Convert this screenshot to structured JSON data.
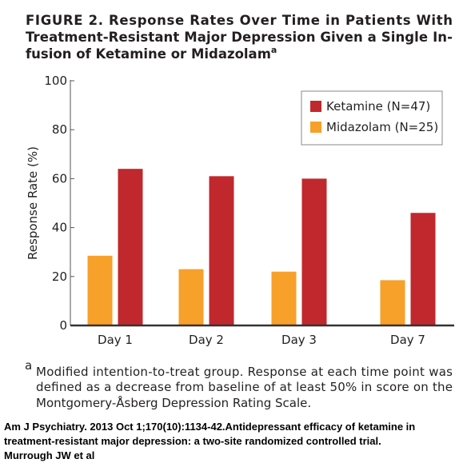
{
  "chart_data": {
    "type": "bar",
    "title_lines": [
      "FIGURE 2. Response Rates Over Time in Patients With",
      "Treatment-Resistant Major Depression Given a Single In-",
      "fusion of Ketamine or Midazolam"
    ],
    "title_marker": "a",
    "y_label": "Response Rate (%)",
    "categories": [
      "Day 1",
      "Day 2",
      "Day 3",
      "Day 7"
    ],
    "series": [
      {
        "name": "Midazolam (N=25)",
        "color": "#f7a02a",
        "values": [
          28.5,
          23,
          22,
          18.5
        ]
      },
      {
        "name": "Ketamine (N=47)",
        "color": "#c0282d",
        "values": [
          64,
          61,
          60,
          46
        ]
      }
    ],
    "legend_order": [
      1,
      0
    ],
    "ylim": [
      0,
      100
    ],
    "yticks": [
      0,
      20,
      40,
      60,
      80,
      100
    ],
    "footnote_marker": "a",
    "footnote_lines": [
      "Modified intention-to-treat group. Response at each time point was",
      "defined as a decrease from baseline of at least 50% in score on the",
      "Montgomery-Åsberg Depression Rating Scale."
    ]
  },
  "citation_lines": [
    "Am J Psychiatry. 2013 Oct 1;170(10):1134-42.Antidepressant efficacy of ketamine in",
    "treatment-resistant major depression: a two-site randomized controlled trial.",
    "Murrough JW et al"
  ]
}
